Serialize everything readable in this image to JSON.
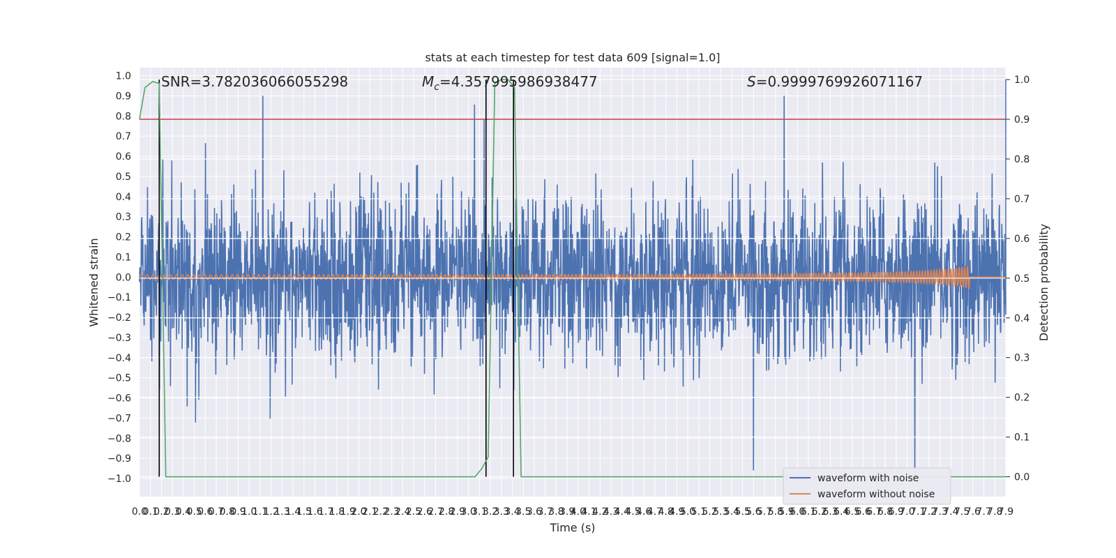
{
  "chart_data": {
    "type": "line",
    "title": "stats at each timestep for test data 609 [signal=1.0]",
    "xlabel": "Time (s)",
    "ylabel": "Whitened strain",
    "y2label": "Detection probability",
    "xlim": [
      0,
      7.9
    ],
    "ylim": [
      -1.09,
      1.04
    ],
    "y2lim": [
      -0.05,
      1.03
    ],
    "x_ticks": [
      "0.0",
      "0.1",
      "0.2",
      "0.3",
      "0.4",
      "0.5",
      "0.6",
      "0.7",
      "0.8",
      "0.9",
      "1.0",
      "1.1",
      "1.2",
      "1.3",
      "1.4",
      "1.5",
      "1.6",
      "1.7",
      "1.8",
      "1.9",
      "2.0",
      "2.1",
      "2.2",
      "2.3",
      "2.4",
      "2.5",
      "2.6",
      "2.7",
      "2.8",
      "2.9",
      "3.0",
      "3.1",
      "3.2",
      "3.3",
      "3.4",
      "3.5",
      "3.6",
      "3.7",
      "3.8",
      "3.9",
      "4.0",
      "4.1",
      "4.2",
      "4.3",
      "4.4",
      "4.5",
      "4.6",
      "4.7",
      "4.8",
      "4.9",
      "5.0",
      "5.1",
      "5.2",
      "5.3",
      "5.4",
      "5.5",
      "5.6",
      "5.7",
      "5.8",
      "5.9",
      "6.0",
      "6.1",
      "6.2",
      "6.3",
      "6.4",
      "6.5",
      "6.6",
      "6.7",
      "6.8",
      "6.9",
      "7.0",
      "7.1",
      "7.2",
      "7.3",
      "7.4",
      "7.5",
      "7.6",
      "7.7",
      "7.8",
      "7.9"
    ],
    "y_ticks": [
      "1.0",
      "0.9",
      "0.8",
      "0.7",
      "0.6",
      "0.5",
      "0.4",
      "0.3",
      "0.2",
      "0.1",
      "0.0",
      "−0.1",
      "−0.2",
      "−0.3",
      "−0.4",
      "−0.5",
      "−0.6",
      "−0.7",
      "−0.8",
      "−0.9",
      "−1.0"
    ],
    "y2_ticks": [
      "1.0",
      "0.9",
      "0.8",
      "0.7",
      "0.6",
      "0.5",
      "0.4",
      "0.3",
      "0.2",
      "0.1",
      "0.0"
    ],
    "annotations": {
      "snr": "SNR=3.782036066055298",
      "mc_prefix": "M",
      "mc_sub": "c",
      "mc_value": "=4.357995986938477",
      "s_prefix": "S",
      "s_value": "=0.9999769926071167"
    },
    "threshold": {
      "name": "threshold",
      "value": 0.9,
      "axis": "y2",
      "color": "#c44e52"
    },
    "vlines": [
      0.18,
      3.16,
      3.41
    ],
    "series": [
      {
        "name": "waveform with noise",
        "color": "#4c72b0",
        "axis": "y",
        "kind": "noise",
        "t_range": [
          0,
          7.9
        ],
        "amplitude_typical": 0.35,
        "amplitude_peak": 1.0
      },
      {
        "name": "waveform without noise",
        "color": "#dd8452",
        "axis": "y",
        "kind": "chirp",
        "t_start": 0,
        "t_merger": 7.57,
        "t_end": 7.9,
        "amplitude_start": 0.01,
        "amplitude_peak": 0.06
      },
      {
        "name": "detection probability",
        "color": "#55a868",
        "axis": "y2",
        "x": [
          0.0,
          0.05,
          0.12,
          0.18,
          0.24,
          0.3,
          3.06,
          3.12,
          3.18,
          3.24,
          3.3,
          3.36,
          3.42,
          3.48,
          7.9
        ],
        "y": [
          0.9,
          0.98,
          0.995,
          0.99,
          0.0,
          0.0,
          0.0,
          0.02,
          0.05,
          0.99,
          1.0,
          1.0,
          0.98,
          0.0,
          0.0
        ]
      }
    ],
    "legend": {
      "placement": "lower-right",
      "entries": [
        "waveform with noise",
        "waveform without noise"
      ]
    },
    "grid": true
  }
}
